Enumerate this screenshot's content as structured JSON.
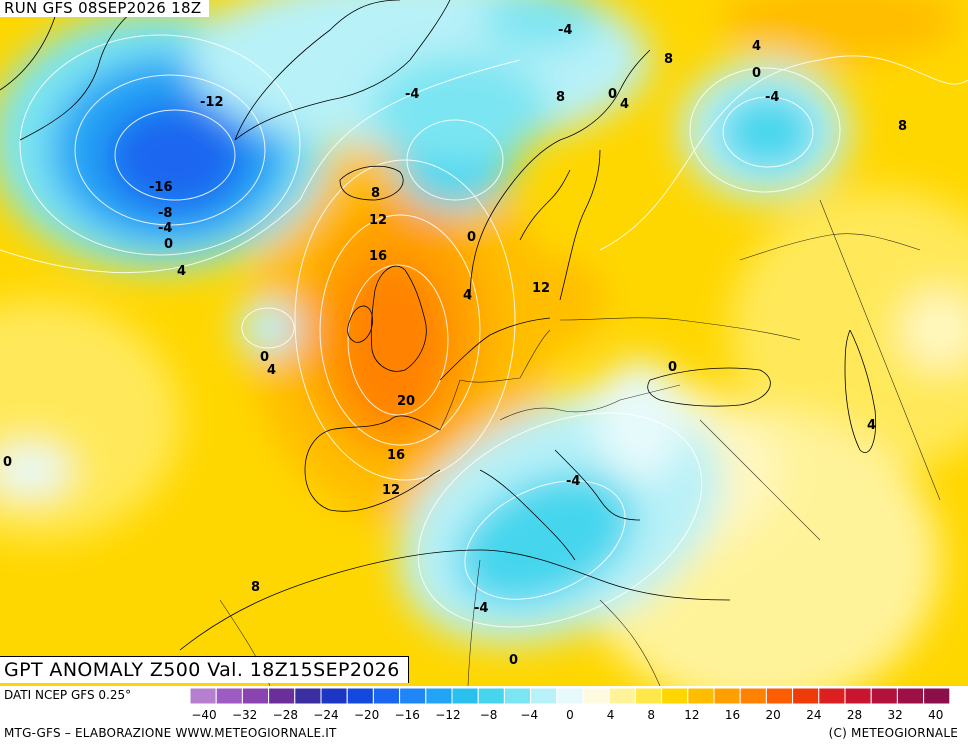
{
  "map": {
    "run_label": "RUN GFS 08SEP2026 18Z",
    "title": "GPT ANOMALY Z500 Val. 18Z15SEP2026",
    "contour_labels": [
      "-4",
      "-4",
      "8",
      "0",
      "4",
      "4",
      "0",
      "-4",
      "8",
      "-12",
      "8",
      "-16",
      "-8",
      "-4",
      "0",
      "4",
      "8",
      "12",
      "16",
      "0",
      "4",
      "12",
      "0",
      "4",
      "20",
      "0",
      "16",
      "12",
      "-4",
      "-4",
      "0",
      "8",
      "4",
      "0"
    ]
  },
  "legend": {
    "source": "DATI NCEP GFS 0.25°",
    "colors": [
      "#b57fd0",
      "#9e5cc2",
      "#8a44b0",
      "#6b2f9b",
      "#3a2ea0",
      "#1c36c4",
      "#1449e0",
      "#1a66f0",
      "#1f86f5",
      "#22a3f5",
      "#2ac0ee",
      "#45d6ee",
      "#7be5f2",
      "#b8f1f8",
      "#e6fafb",
      "#fffbe0",
      "#fff39a",
      "#ffe84a",
      "#ffd600",
      "#ffbd00",
      "#ffa000",
      "#ff8200",
      "#fb5e00",
      "#ef3b0a",
      "#dc1f1f",
      "#c81530",
      "#b3123c",
      "#9c1046",
      "#8d0f4a"
    ],
    "ticks": [
      "−40",
      "−32",
      "−28",
      "−24",
      "−20",
      "−16",
      "−12",
      "−8",
      "−4",
      "0",
      "4",
      "8",
      "12",
      "16",
      "20",
      "24",
      "28",
      "32",
      "40"
    ],
    "credit_left": "MTG-GFS – ELABORAZIONE WWW.METEOGIORNALE.IT",
    "credit_right": "(C) METEOGIORNALE"
  }
}
